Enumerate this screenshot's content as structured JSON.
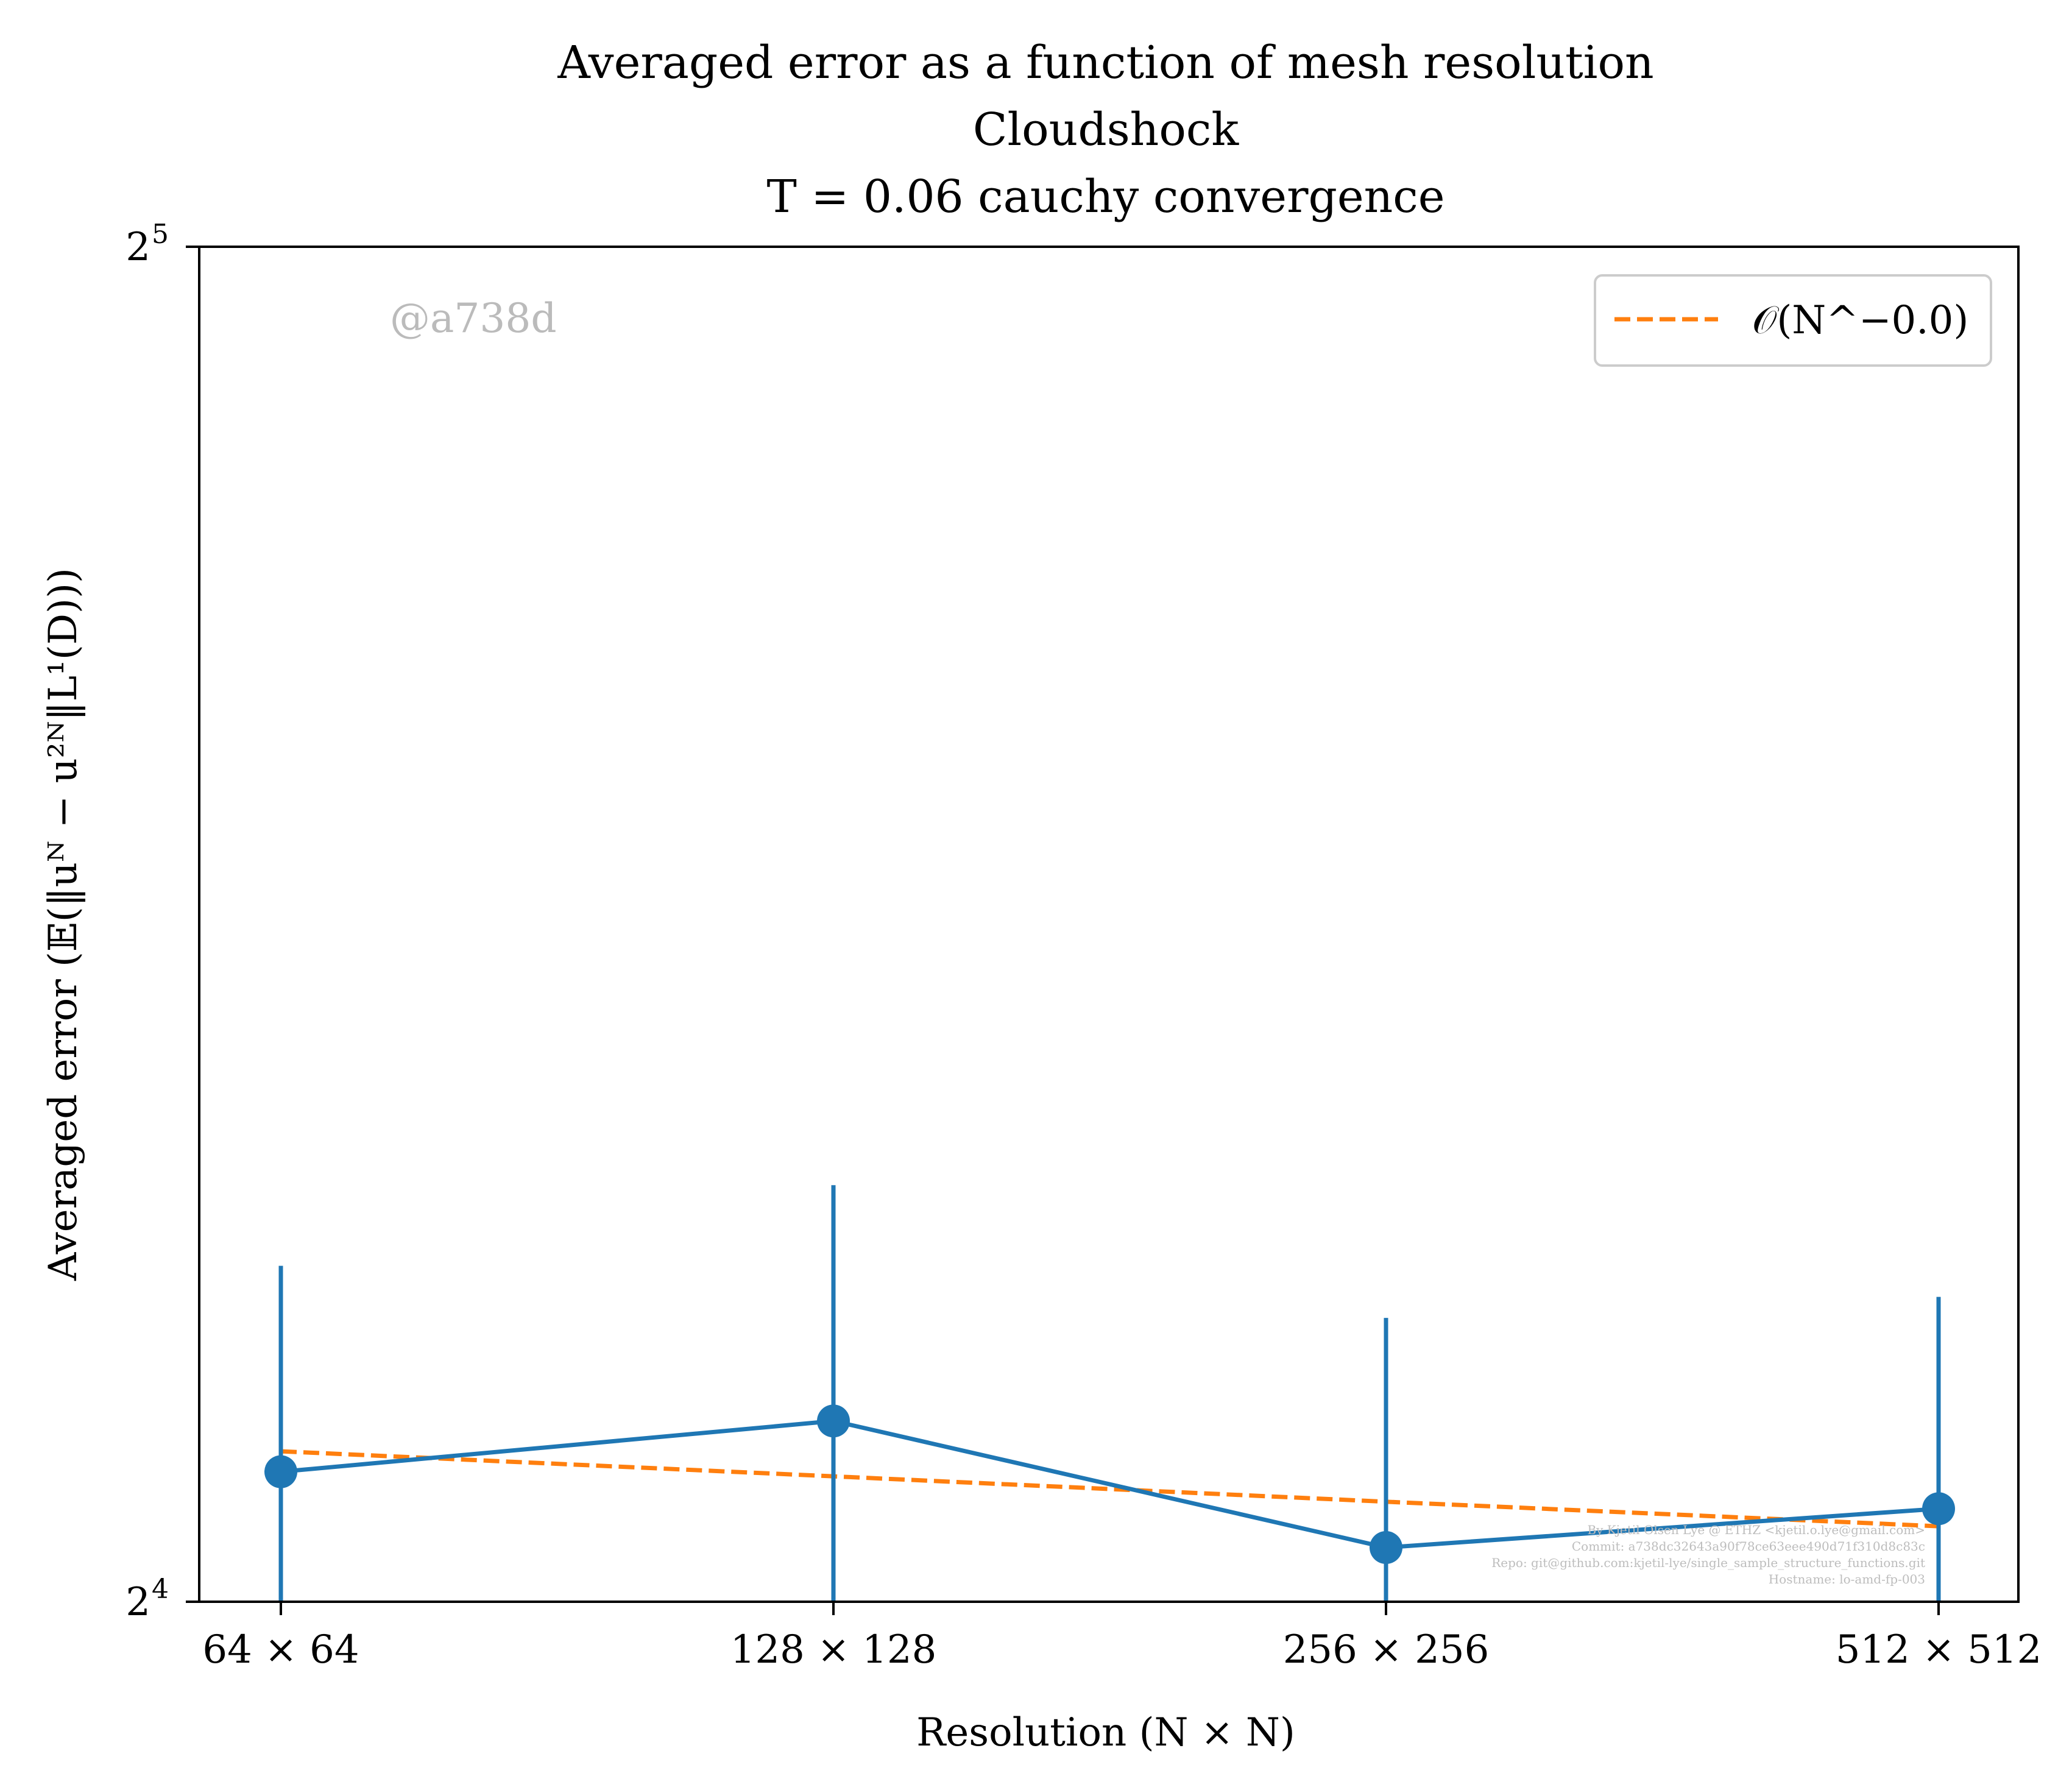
{
  "chart_data": {
    "type": "line",
    "title_lines": [
      "Averaged error as a function of mesh resolution",
      "Cloudshock",
      "T = 0.06 cauchy convergence"
    ],
    "xlabel": "Resolution (N × N)",
    "ylabel": "Averaged error (𝔼(‖uᴺ − u²ᴺ‖L¹(D)))",
    "y_scale": "log2",
    "ylim": [
      16,
      32
    ],
    "y_ticks": [
      {
        "value": 16,
        "label_base": "2",
        "label_exp": "4"
      },
      {
        "value": 32,
        "label_base": "2",
        "label_exp": "5"
      }
    ],
    "categories": [
      "64 × 64",
      "128 × 128",
      "256 × 256",
      "512 × 512"
    ],
    "series": [
      {
        "kind": "errorbar",
        "color": "#1f77b4",
        "values": [
          17.1,
          17.55,
          16.45,
          16.78
        ],
        "error_low": [
          15.0,
          15.0,
          15.0,
          15.0
        ],
        "error_high": [
          19.0,
          19.8,
          18.5,
          18.7
        ]
      },
      {
        "name": "𝒪(N^−0.0)",
        "kind": "fit",
        "color": "#ff7f0e",
        "dashed": true,
        "values": [
          17.28,
          17.06,
          16.84,
          16.63
        ]
      }
    ],
    "legend": {
      "position": "top-right",
      "label": "𝒪(N^−0.0)"
    },
    "grid": false
  },
  "watermark": "@a738d",
  "credits": [
    "By Kjetil Olsen Lye @ ETHZ <kjetil.o.lye@gmail.com>",
    "Commit: a738dc32643a90f78ce63eee490d71f310d8c83c",
    "Repo: git@github.com:kjetil-lye/single_sample_structure_functions.git",
    "Hostname: lo-amd-fp-003"
  ]
}
